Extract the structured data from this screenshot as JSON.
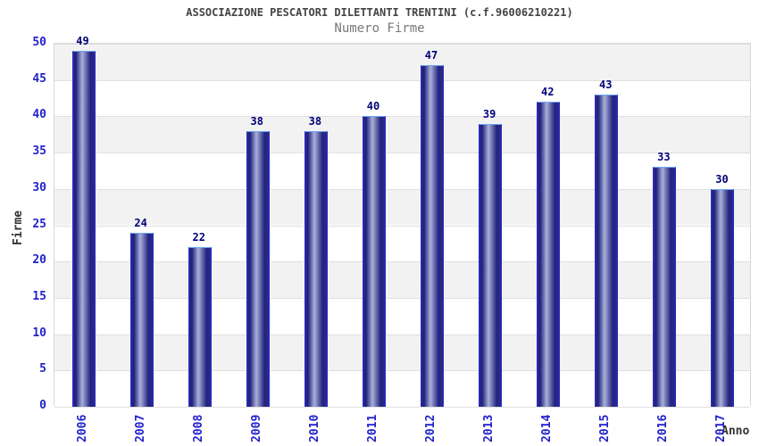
{
  "chart_data": {
    "type": "bar",
    "title": "ASSOCIAZIONE PESCATORI DILETTANTI TRENTINI (c.f.96006210221)",
    "subtitle": "Numero Firme",
    "xlabel": "Anno",
    "ylabel": "Firme",
    "categories": [
      "2006",
      "2007",
      "2008",
      "2009",
      "2010",
      "2011",
      "2012",
      "2013",
      "2014",
      "2015",
      "2016",
      "2017"
    ],
    "values": [
      49,
      24,
      22,
      38,
      38,
      40,
      47,
      39,
      42,
      43,
      33,
      30
    ],
    "ylim": [
      0,
      50
    ],
    "ytick_step": 5,
    "grid": true,
    "band_fill": true,
    "legend": "none"
  },
  "colors": {
    "band_gray": "#f2f2f2",
    "band_white": "#ffffff",
    "gridline": "#e0e0e0",
    "tick_label": "#2222cc",
    "value_label": "#00007a",
    "bar_dark": "#23237f",
    "bar_light": "#a9b1d9",
    "bar_border_side": "#2a2ad0",
    "bar_border_top": "#6ea6f2",
    "title": "#444444",
    "subtitle": "#777777",
    "axis_title": "#333333"
  }
}
